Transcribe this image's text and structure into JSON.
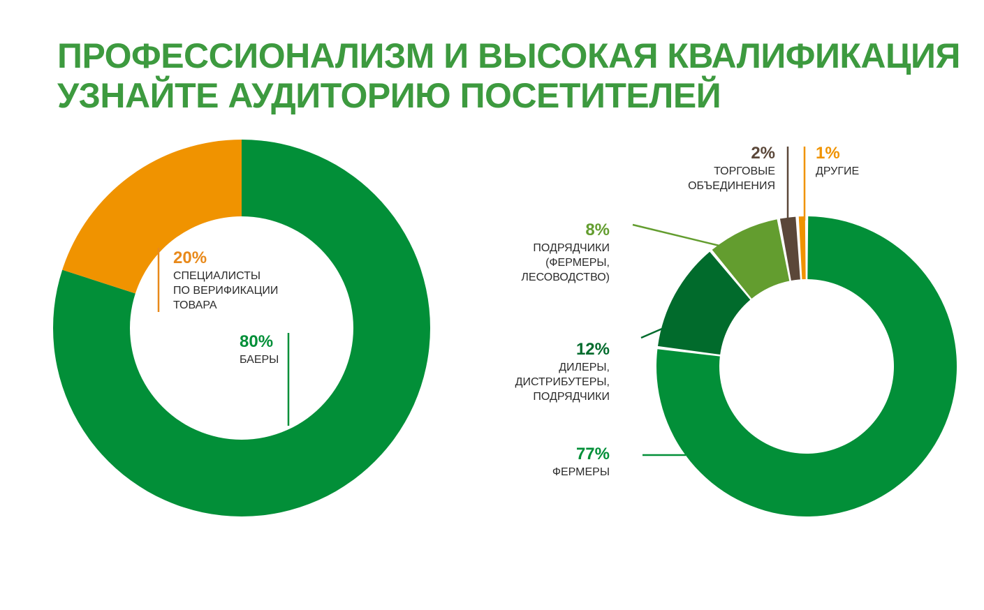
{
  "title_lines": [
    "ПРОФЕССИОНАЛИЗМ И ВЫСОКАЯ КВАЛИФИКАЦИЯ",
    "УЗНАЙТЕ АУДИТОРИЮ ПОСЕТИТЕЛЕЙ"
  ],
  "colors": {
    "title": "#3d9a3f",
    "green": "#028f38",
    "dark_green": "#016b2c",
    "light_green": "#639d2f",
    "brown": "#5b4739",
    "orange": "#f09300"
  },
  "chart_data": [
    {
      "type": "pie",
      "donut": true,
      "slices": [
        {
          "value": 80,
          "label_pct": "80%",
          "label_lines": [
            "БАЕРЫ"
          ],
          "color": "#028f38"
        },
        {
          "value": 20,
          "label_pct": "20%",
          "label_lines": [
            "СПЕЦИАЛИСТЫ",
            "ПО ВЕРИФИКАЦИИ",
            "ТОВАРА"
          ],
          "color": "#f09300"
        }
      ]
    },
    {
      "type": "pie",
      "donut": true,
      "slices": [
        {
          "value": 77,
          "label_pct": "77%",
          "label_lines": [
            "ФЕРМЕРЫ"
          ],
          "color": "#028f38"
        },
        {
          "value": 12,
          "label_pct": "12%",
          "label_lines": [
            "ДИЛЕРЫ,",
            "ДИСТРИБУТЕРЫ,",
            "ПОДРЯДЧИКИ"
          ],
          "color": "#016b2c"
        },
        {
          "value": 8,
          "label_pct": "8%",
          "label_lines": [
            "ПОДРЯДЧИКИ",
            "(ФЕРМЕРЫ,",
            "ЛЕСОВОДСТВО)"
          ],
          "color": "#639d2f"
        },
        {
          "value": 2,
          "label_pct": "2%",
          "label_lines": [
            "ТОРГОВЫЕ",
            "ОБЪЕДИНЕНИЯ"
          ],
          "color": "#5b4739"
        },
        {
          "value": 1,
          "label_pct": "1%",
          "label_lines": [
            "ДРУГИЕ"
          ],
          "color": "#f09300"
        }
      ]
    }
  ]
}
